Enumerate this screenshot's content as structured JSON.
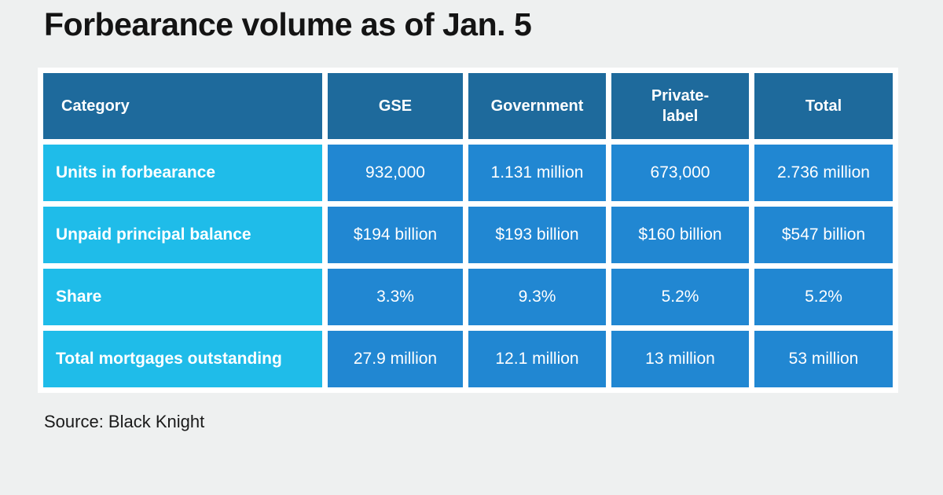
{
  "page": {
    "background_color": "#eef0f0"
  },
  "title": "Forbearance volume as of Jan. 5",
  "source": "Source: Black Knight",
  "colors": {
    "header_bg": "#1e6a9c",
    "category_bg": "#1fbce9",
    "value_bg": "#2187d2",
    "gap": "#ffffff",
    "table_text": "#ffffff",
    "title_text": "#141414"
  },
  "chart_data": {
    "type": "table",
    "title": "Forbearance volume as of Jan. 5",
    "columns": [
      "Category",
      "GSE",
      "Government",
      "Private-\nlabel",
      "Total"
    ],
    "rows": [
      {
        "category": "Units in forbearance",
        "values": [
          "932,000",
          "1.131 million",
          "673,000",
          "2.736 million"
        ]
      },
      {
        "category": "Unpaid principal balance",
        "values": [
          "$194 billion",
          "$193 billion",
          "$160 billion",
          "$547 billion"
        ]
      },
      {
        "category": "Share",
        "values": [
          "3.3%",
          "9.3%",
          "5.2%",
          "5.2%"
        ]
      },
      {
        "category": "Total mortgages outstanding",
        "values": [
          "27.9 million",
          "12.1 million",
          "13 million",
          "53 million"
        ]
      }
    ],
    "source": "Source: Black Knight",
    "layout": {
      "legend": "none",
      "grid": "white-gaps"
    }
  }
}
